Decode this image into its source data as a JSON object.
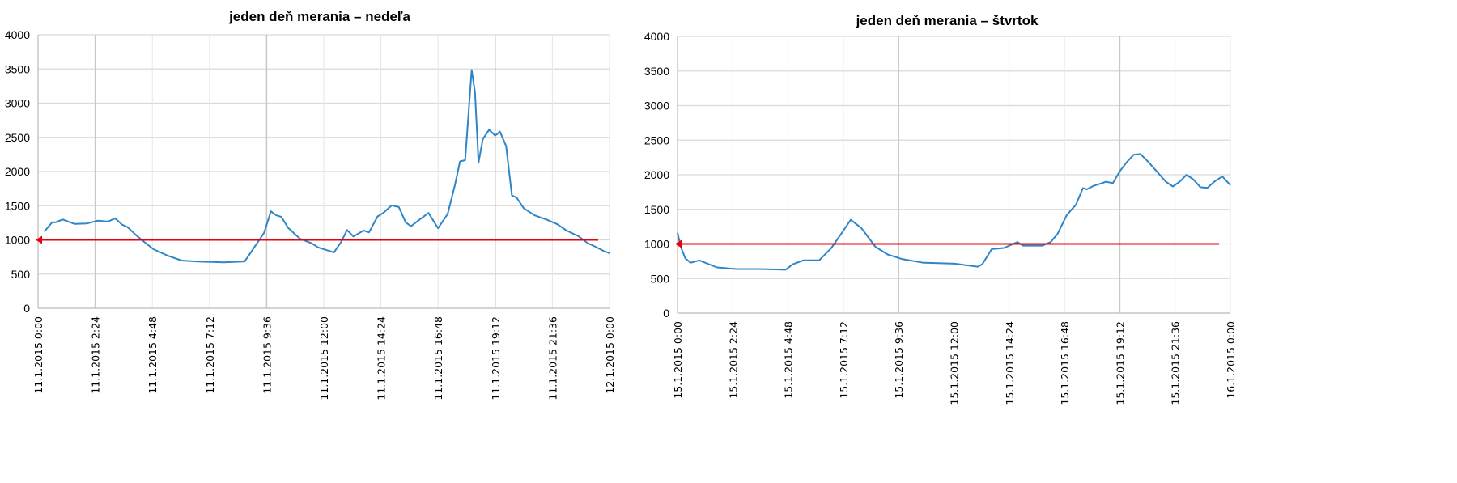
{
  "chart_data": [
    {
      "type": "line",
      "title": "jeden deň merania – nedeľa",
      "ylim": [
        0,
        4000
      ],
      "yticks": [
        "0",
        "500",
        "1000",
        "1500",
        "2000",
        "2500",
        "3000",
        "3500",
        "4000"
      ],
      "xticks": [
        "11.1.2015 0:00",
        "11.1.2015 2:24",
        "11.1.2015 4:48",
        "11.1.2015 7:12",
        "11.1.2015 9:36",
        "11.1.2015 12:00",
        "11.1.2015 14:24",
        "11.1.2015 16:48",
        "11.1.2015 19:12",
        "11.1.2015 21:36",
        "12.1.2015 0:00"
      ],
      "x_unit": "hours since 11.1.2015 0:00",
      "grid": true,
      "threshold": {
        "value": 1000,
        "color": "#e8000d"
      },
      "series_color": "#2e86c8",
      "x": [
        0.26,
        0.59,
        0.74,
        1.03,
        1.54,
        2.06,
        2.5,
        2.94,
        3.24,
        3.53,
        3.75,
        4.12,
        4.41,
        4.85,
        5.44,
        6.03,
        6.62,
        7.79,
        8.68,
        9.26,
        9.49,
        9.78,
        10.0,
        10.22,
        10.5,
        11.0,
        11.5,
        11.76,
        12.43,
        12.72,
        12.98,
        13.24,
        13.68,
        13.9,
        14.26,
        14.5,
        14.85,
        15.15,
        15.44,
        15.66,
        16.0,
        16.4,
        16.8,
        17.2,
        17.5,
        17.72,
        17.94,
        18.21,
        18.35,
        18.5,
        18.68,
        18.94,
        19.2,
        19.4,
        19.66,
        19.9,
        20.1,
        20.4,
        20.85,
        21.4,
        21.8,
        22.2,
        22.7,
        23.06,
        23.4,
        23.74,
        24.0
      ],
      "y": [
        1120,
        1257,
        1257,
        1298,
        1233,
        1240,
        1281,
        1267,
        1315,
        1223,
        1189,
        1069,
        983,
        863,
        770,
        698,
        685,
        671,
        685,
        983,
        1103,
        1418,
        1360,
        1336,
        1178,
        1017,
        949,
        890,
        818,
        966,
        1144,
        1051,
        1137,
        1110,
        1343,
        1394,
        1504,
        1480,
        1257,
        1199,
        1291,
        1394,
        1171,
        1377,
        1789,
        2148,
        2166,
        3485,
        3160,
        2131,
        2474,
        2611,
        2525,
        2584,
        2371,
        1651,
        1617,
        1463,
        1360,
        1291,
        1230,
        1136,
        1053,
        958,
        900,
        840,
        805
      ]
    },
    {
      "type": "line",
      "title": "jeden deň merania – štvrtok",
      "ylim": [
        0,
        4000
      ],
      "yticks": [
        "0",
        "500",
        "1000",
        "1500",
        "2000",
        "2500",
        "3000",
        "3500",
        "4000"
      ],
      "xticks": [
        "15.1.2015 0:00",
        "15.1.2015 2:24",
        "15.1.2015 4:48",
        "15.1.2015 7:12",
        "15.1.2015 9:36",
        "15.1.2015 12:00",
        "15.1.2015 14:24",
        "15.1.2015 16:48",
        "15.1.2015 19:12",
        "15.1.2015 21:36",
        "16.1.2015 0:00"
      ],
      "x_unit": "hours since 15.1.2015 0:00",
      "grid": true,
      "threshold": {
        "value": 1000,
        "color": "#e8000d"
      },
      "series_color": "#2e86c8",
      "x": [
        0,
        0.14,
        0.34,
        0.57,
        0.95,
        1.71,
        2.55,
        3.62,
        4.69,
        5.0,
        5.46,
        6.15,
        6.68,
        7.14,
        7.52,
        7.98,
        8.59,
        9.13,
        9.74,
        10.66,
        12.03,
        12.49,
        13.03,
        13.23,
        13.64,
        14.17,
        14.76,
        15.0,
        15.84,
        16.2,
        16.5,
        16.9,
        17.3,
        17.6,
        17.77,
        18.07,
        18.4,
        18.6,
        18.9,
        19.2,
        19.5,
        19.8,
        20.1,
        20.4,
        20.8,
        21.2,
        21.5,
        21.8,
        22.1,
        22.4,
        22.7,
        23.0,
        23.3,
        23.65,
        24.0
      ],
      "y": [
        1163,
        959,
        790,
        729,
        763,
        661,
        637,
        637,
        627,
        705,
        763,
        763,
        942,
        1163,
        1349,
        1230,
        959,
        847,
        783,
        729,
        715,
        695,
        671,
        705,
        925,
        942,
        1027,
        976,
        976,
        1027,
        1146,
        1417,
        1569,
        1807,
        1790,
        1841,
        1875,
        1900,
        1880,
        2050,
        2180,
        2290,
        2300,
        2200,
        2050,
        1900,
        1830,
        1900,
        2000,
        1930,
        1820,
        1810,
        1900,
        1975,
        1850
      ]
    }
  ]
}
